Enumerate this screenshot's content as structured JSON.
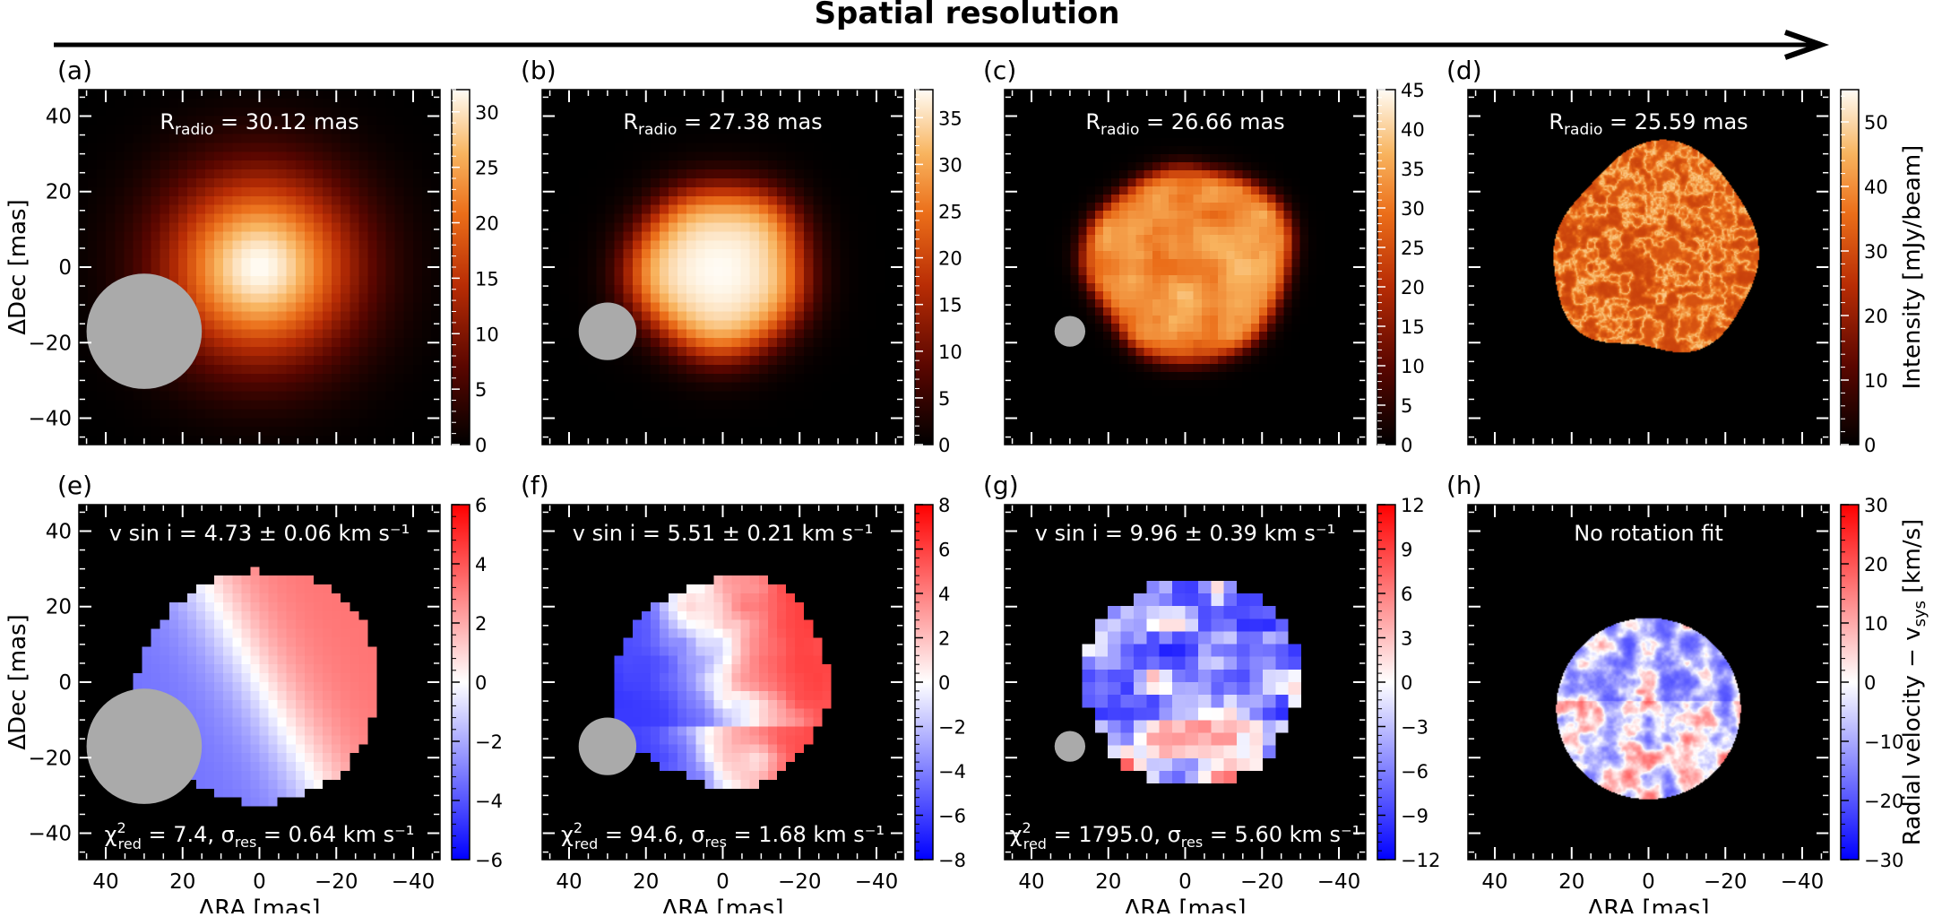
{
  "header": {
    "title": "Spatial resolution"
  },
  "axes": {
    "xlabel": "ΔRA [mas]",
    "ylabel": "ΔDec [mas]",
    "xticks": [
      40,
      20,
      0,
      -20,
      -40
    ],
    "yticks": [
      40,
      20,
      0,
      -20,
      -40
    ],
    "xlim": [
      47,
      -47
    ],
    "ylim": [
      -47,
      47
    ]
  },
  "colorbars": {
    "intensity_label": "Intensity [mJy/beam]",
    "velocity_label_main": "Radial velocity  − v",
    "velocity_label_sub": "sys",
    "velocity_label_unit": " [km/s]"
  },
  "chart_data": [
    {
      "panel": "(a)",
      "type": "heatmap",
      "quantity": "intensity",
      "annotation_prefix": "R",
      "annotation_sub": "radio",
      "annotation_value": " = 30.12 mas",
      "colorbar_ticks": [
        "0",
        "5",
        "10",
        "15",
        "20",
        "25",
        "30"
      ],
      "colorbar_range": [
        0,
        32
      ],
      "beam_radius_mas": 15,
      "beam_center_mas": [
        30,
        -17
      ],
      "structure": "smooth gaussian peak"
    },
    {
      "panel": "(b)",
      "type": "heatmap",
      "quantity": "intensity",
      "annotation_prefix": "R",
      "annotation_sub": "radio",
      "annotation_value": " = 27.38 mas",
      "colorbar_ticks": [
        "0",
        "5",
        "10",
        "15",
        "20",
        "25",
        "30",
        "35"
      ],
      "colorbar_range": [
        0,
        38
      ],
      "beam_radius_mas": 7.5,
      "beam_center_mas": [
        30,
        -17
      ],
      "structure": "pixelated disc"
    },
    {
      "panel": "(c)",
      "type": "heatmap",
      "quantity": "intensity",
      "annotation_prefix": "R",
      "annotation_sub": "radio",
      "annotation_value": " = 26.66 mas",
      "colorbar_ticks": [
        "0",
        "5",
        "10",
        "15",
        "20",
        "25",
        "30",
        "35",
        "40",
        "45"
      ],
      "colorbar_range": [
        0,
        45
      ],
      "beam_radius_mas": 4,
      "beam_center_mas": [
        30,
        -17
      ],
      "structure": "irregular disc"
    },
    {
      "panel": "(d)",
      "type": "heatmap",
      "quantity": "intensity",
      "annotation_prefix": "R",
      "annotation_sub": "radio",
      "annotation_value": " = 25.59 mas",
      "colorbar_ticks": [
        "0",
        "10",
        "20",
        "30",
        "40",
        "50"
      ],
      "colorbar_range": [
        0,
        55
      ],
      "structure": "high-resolution disc"
    },
    {
      "panel": "(e)",
      "type": "heatmap",
      "quantity": "radial velocity",
      "annotation_top": "v sin i = 4.73 ± 0.06 km s⁻¹",
      "annotation_chi_prefix": "χ",
      "annotation_chi_sup": "2",
      "annotation_chi_sub": "red",
      "annotation_bottom_a": " = 7.4, σ",
      "annotation_bottom_sub": "res",
      "annotation_bottom_b": " = 0.64 km s⁻¹",
      "colorbar_ticks": [
        "6",
        "4",
        "2",
        "0",
        "−2",
        "−4",
        "−6"
      ],
      "colorbar_range": [
        -6,
        6
      ],
      "beam_radius_mas": 15,
      "beam_center_mas": [
        30,
        -17
      ],
      "vmax_kms": 3.5,
      "gradient": "smooth"
    },
    {
      "panel": "(f)",
      "type": "heatmap",
      "quantity": "radial velocity",
      "annotation_top": "v sin i = 5.51 ± 0.21 km s⁻¹",
      "annotation_chi_prefix": "χ",
      "annotation_chi_sup": "2",
      "annotation_chi_sub": "red",
      "annotation_bottom_a": " = 94.6, σ",
      "annotation_bottom_sub": "res",
      "annotation_bottom_b": " = 1.68 km s⁻¹",
      "colorbar_ticks": [
        "8",
        "6",
        "4",
        "2",
        "0",
        "−2",
        "−4",
        "−6",
        "−8"
      ],
      "colorbar_range": [
        -8,
        8
      ],
      "beam_radius_mas": 7.5,
      "beam_center_mas": [
        30,
        -17
      ],
      "vmax_kms": 5,
      "gradient": "patchy"
    },
    {
      "panel": "(g)",
      "type": "heatmap",
      "quantity": "radial velocity",
      "annotation_top": "v sin i = 9.96 ± 0.39 km s⁻¹",
      "annotation_chi_prefix": "χ",
      "annotation_chi_sup": "2",
      "annotation_chi_sub": "red",
      "annotation_bottom_a": " = 1795.0, σ",
      "annotation_bottom_sub": "res",
      "annotation_bottom_b": " = 5.60 km s⁻¹",
      "colorbar_ticks": [
        "12",
        "9",
        "6",
        "3",
        "0",
        "−3",
        "−6",
        "−9",
        "−12"
      ],
      "colorbar_range": [
        -12,
        12
      ],
      "beam_radius_mas": 4,
      "beam_center_mas": [
        30,
        -17
      ],
      "vmax_kms": 12,
      "gradient": "noisy"
    },
    {
      "panel": "(h)",
      "type": "heatmap",
      "quantity": "radial velocity",
      "annotation_top": "No rotation fit",
      "colorbar_ticks": [
        "30",
        "20",
        "10",
        "0",
        "−10",
        "−20",
        "−30"
      ],
      "colorbar_range": [
        -30,
        30
      ],
      "vmax_kms": 30,
      "gradient": "turbulent"
    }
  ]
}
